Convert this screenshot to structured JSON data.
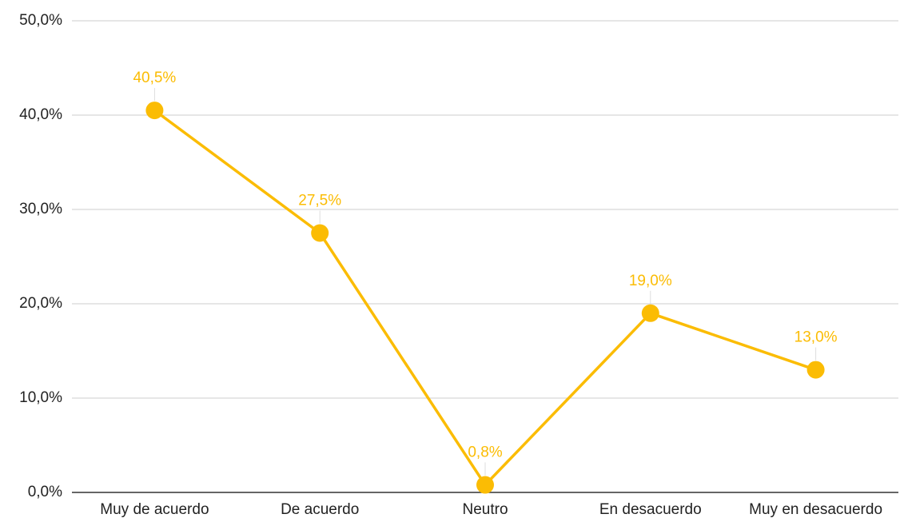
{
  "chart_data": {
    "type": "line",
    "categories": [
      "Muy de acuerdo",
      "De acuerdo",
      "Neutro",
      "En desacuerdo",
      "Muy en desacuerdo"
    ],
    "series": [
      {
        "color": "#fbbc04",
        "values": [
          40.5,
          27.5,
          0.8,
          19.0,
          13.0
        ],
        "value_labels": [
          "40,5%",
          "27,5%",
          "0,8%",
          "19,0%",
          "13,0%"
        ]
      }
    ],
    "ylim": [
      0,
      50
    ],
    "yticks": [
      {
        "value": 0,
        "label": "0,0%"
      },
      {
        "value": 10,
        "label": "10,0%"
      },
      {
        "value": 20,
        "label": "20,0%"
      },
      {
        "value": 30,
        "label": "30,0%"
      },
      {
        "value": 40,
        "label": "40,0%"
      },
      {
        "value": 50,
        "label": "50,0%"
      }
    ],
    "grid": true
  }
}
